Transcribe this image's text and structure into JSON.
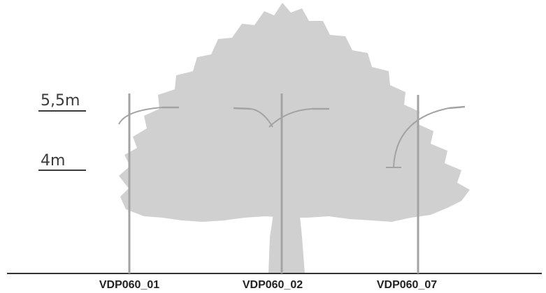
{
  "heights": {
    "upper": "5,5m",
    "lower": "4m"
  },
  "poles": [
    {
      "id": "VDP060_01"
    },
    {
      "id": "VDP060_02"
    },
    {
      "id": "VDP060_07"
    }
  ],
  "colors": {
    "tree": "#d0d0d0",
    "pole": "#a3a3a3",
    "ground": "#333333",
    "label": "#3a3a3a"
  }
}
